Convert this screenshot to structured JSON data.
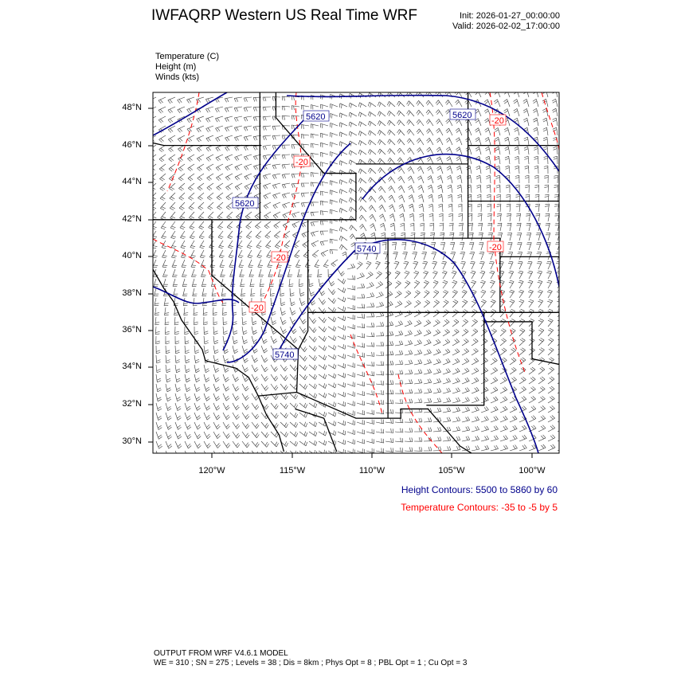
{
  "header": {
    "title": "IWFAQRP Western US Real Time WRF",
    "init": "Init: 2026-01-27_00:00:00",
    "valid": "Valid: 2026-02-02_17:00:00"
  },
  "fields": [
    "Temperature   (C)",
    "Height   (m)",
    "Winds   (kts)"
  ],
  "map": {
    "lat_labels": [
      "48°N",
      "46°N",
      "44°N",
      "42°N",
      "40°N",
      "38°N",
      "36°N",
      "34°N",
      "32°N",
      "30°N"
    ],
    "lon_labels": [
      "120°W",
      "115°W",
      "110°W",
      "105°W",
      "100°W"
    ],
    "height_labels": [
      "5620",
      "5620",
      "5620",
      "5740",
      "5740"
    ],
    "temp_labels": [
      "-20",
      "-20",
      "-20",
      "-20",
      "-20"
    ],
    "colors": {
      "height": "#00008b",
      "temperature": "#ff0000",
      "barb": "#333333",
      "boundary": "#000000"
    }
  },
  "legend": {
    "height": "Height Contours: 5500 to 5860 by 60",
    "temperature": "Temperature Contours: -35 to -5 by 5"
  },
  "footer": {
    "line1": "OUTPUT FROM WRF V4.6.1 MODEL",
    "line2": "WE = 310 ; SN = 275 ; Levels = 38 ; Dis = 8km ; Phys Opt = 8 ; PBL Opt = 1 ; Cu Opt = 3"
  }
}
